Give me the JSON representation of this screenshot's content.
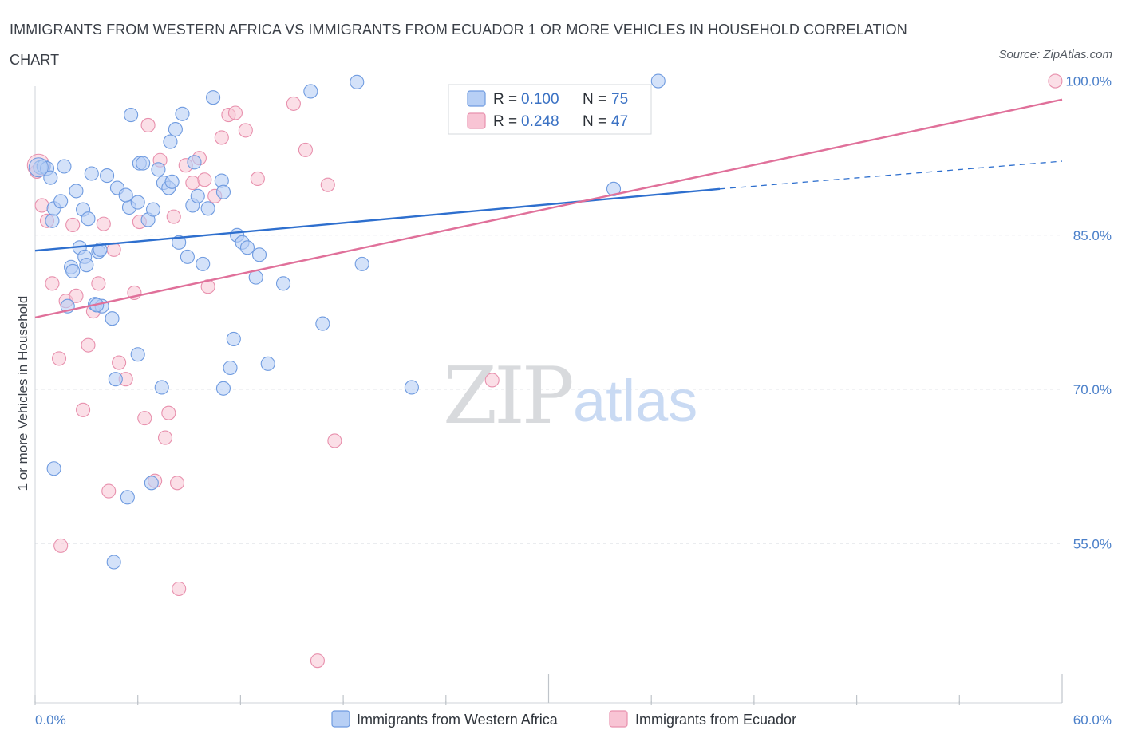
{
  "header": {
    "title": "IMMIGRANTS FROM WESTERN AFRICA VS IMMIGRANTS FROM ECUADOR 1 OR MORE VEHICLES IN HOUSEHOLD CORRELATION CHART",
    "source": "Source: ZipAtlas.com"
  },
  "watermark": {
    "zip": "ZIP",
    "atlas": "atlas"
  },
  "legend": {
    "r_label": "R =",
    "n_label": "N =",
    "items": [
      {
        "r": "0.100",
        "n": "75"
      },
      {
        "r": "0.248",
        "n": "47"
      }
    ]
  },
  "colors": {
    "blue_fill": "#b7cff5",
    "blue_stroke": "#6f9be0",
    "blue_line": "#2e6fce",
    "pink_fill": "#f8c4d4",
    "pink_stroke": "#e890ad",
    "pink_line": "#e0709a",
    "grid": "#e3e6ea",
    "tick_text": "#4a7fc9"
  },
  "chart_data": {
    "type": "scatter",
    "title": "IMMIGRANTS FROM WESTERN AFRICA VS IMMIGRANTS FROM ECUADOR 1 OR MORE VEHICLES IN HOUSEHOLD CORRELATION CHART",
    "xlabel": "",
    "ylabel": "1 or more Vehicles in Household",
    "xlim": [
      0,
      60
    ],
    "ylim": [
      39.5,
      99.5
    ],
    "x_ticks": [
      0,
      60
    ],
    "x_tick_labels": [
      "0.0%",
      "60.0%"
    ],
    "y_ticks": [
      55,
      70,
      85,
      100
    ],
    "y_tick_labels": [
      "55.0%",
      "70.0%",
      "85.0%",
      "100.0%"
    ],
    "grid": true,
    "legend_position": "top-center",
    "series": [
      {
        "name": "Immigrants from Western Africa",
        "r": 0.1,
        "n": 75,
        "trend": {
          "x": [
            0,
            40
          ],
          "y": [
            83.5,
            89.5
          ],
          "dashed_to": [
            60,
            92.2
          ]
        },
        "points": [
          [
            0.3,
            91.6
          ],
          [
            0.5,
            91.7
          ],
          [
            0.7,
            91.5
          ],
          [
            0.9,
            90.6
          ],
          [
            1.0,
            86.4
          ],
          [
            1.1,
            87.6
          ],
          [
            1.5,
            88.3
          ],
          [
            1.7,
            91.7
          ],
          [
            1.9,
            78.1
          ],
          [
            2.1,
            81.9
          ],
          [
            2.4,
            89.3
          ],
          [
            2.6,
            83.8
          ],
          [
            2.8,
            87.5
          ],
          [
            2.9,
            82.9
          ],
          [
            3.0,
            82.1
          ],
          [
            3.1,
            86.6
          ],
          [
            3.3,
            91.0
          ],
          [
            3.5,
            78.3
          ],
          [
            3.7,
            83.4
          ],
          [
            3.9,
            78.1
          ],
          [
            4.2,
            90.8
          ],
          [
            4.5,
            76.9
          ],
          [
            4.8,
            89.6
          ],
          [
            5.5,
            87.7
          ],
          [
            5.6,
            96.7
          ],
          [
            6.0,
            88.2
          ],
          [
            6.1,
            92.0
          ],
          [
            6.3,
            92.0
          ],
          [
            6.6,
            86.5
          ],
          [
            6.9,
            87.5
          ],
          [
            7.2,
            91.4
          ],
          [
            7.5,
            90.1
          ],
          [
            7.8,
            89.6
          ],
          [
            7.9,
            94.1
          ],
          [
            8.2,
            95.3
          ],
          [
            8.4,
            84.3
          ],
          [
            8.6,
            96.8
          ],
          [
            8.9,
            82.9
          ],
          [
            9.2,
            87.9
          ],
          [
            9.3,
            92.1
          ],
          [
            9.5,
            88.8
          ],
          [
            9.8,
            82.2
          ],
          [
            10.1,
            87.6
          ],
          [
            10.4,
            98.4
          ],
          [
            10.9,
            90.3
          ],
          [
            11.0,
            89.2
          ],
          [
            11.4,
            72.1
          ],
          [
            11.6,
            74.9
          ],
          [
            11.8,
            85.0
          ],
          [
            12.1,
            84.3
          ],
          [
            12.4,
            83.8
          ],
          [
            12.9,
            80.9
          ],
          [
            13.1,
            83.1
          ],
          [
            13.6,
            72.5
          ],
          [
            14.5,
            80.3
          ],
          [
            16.1,
            99.0
          ],
          [
            16.8,
            76.4
          ],
          [
            18.8,
            99.9
          ],
          [
            19.1,
            82.2
          ],
          [
            22.0,
            70.2
          ],
          [
            33.8,
            89.5
          ],
          [
            36.4,
            100.0
          ],
          [
            4.6,
            53.2
          ],
          [
            5.4,
            59.5
          ],
          [
            6.8,
            60.9
          ],
          [
            1.1,
            62.3
          ],
          [
            4.7,
            71.0
          ],
          [
            6.0,
            73.4
          ],
          [
            7.4,
            70.2
          ],
          [
            11.0,
            70.1
          ],
          [
            3.6,
            78.2
          ],
          [
            2.2,
            81.5
          ],
          [
            3.8,
            83.6
          ],
          [
            5.3,
            88.9
          ],
          [
            8.0,
            90.2
          ]
        ]
      },
      {
        "name": "Immigrants from Ecuador",
        "r": 0.248,
        "n": 47,
        "trend": {
          "x": [
            0,
            60
          ],
          "y": [
            77.0,
            98.2
          ]
        },
        "points": [
          [
            0.1,
            91.2
          ],
          [
            0.4,
            87.9
          ],
          [
            0.7,
            86.4
          ],
          [
            1.0,
            80.3
          ],
          [
            1.4,
            73.0
          ],
          [
            1.5,
            54.8
          ],
          [
            1.8,
            78.6
          ],
          [
            2.2,
            86.0
          ],
          [
            2.4,
            79.1
          ],
          [
            2.8,
            68.0
          ],
          [
            3.1,
            74.3
          ],
          [
            3.4,
            77.6
          ],
          [
            3.7,
            80.3
          ],
          [
            4.0,
            86.1
          ],
          [
            4.3,
            60.1
          ],
          [
            4.6,
            83.6
          ],
          [
            4.9,
            72.6
          ],
          [
            5.3,
            71.0
          ],
          [
            5.8,
            79.4
          ],
          [
            6.1,
            86.3
          ],
          [
            6.4,
            67.2
          ],
          [
            6.6,
            95.7
          ],
          [
            7.0,
            61.1
          ],
          [
            7.3,
            92.3
          ],
          [
            7.6,
            65.3
          ],
          [
            7.8,
            67.7
          ],
          [
            8.1,
            86.8
          ],
          [
            8.3,
            60.9
          ],
          [
            8.4,
            50.6
          ],
          [
            8.8,
            91.8
          ],
          [
            9.2,
            90.1
          ],
          [
            9.6,
            92.5
          ],
          [
            9.9,
            90.4
          ],
          [
            10.1,
            80.0
          ],
          [
            10.5,
            88.8
          ],
          [
            10.9,
            94.5
          ],
          [
            11.3,
            96.7
          ],
          [
            11.7,
            96.9
          ],
          [
            12.3,
            95.2
          ],
          [
            13.0,
            90.5
          ],
          [
            15.1,
            97.8
          ],
          [
            15.8,
            93.3
          ],
          [
            16.5,
            43.6
          ],
          [
            17.1,
            89.9
          ],
          [
            17.5,
            65.0
          ],
          [
            26.7,
            70.9
          ],
          [
            59.6,
            100.0
          ]
        ]
      }
    ]
  },
  "bottom_legend": [
    {
      "label": "Immigrants from Western Africa"
    },
    {
      "label": "Immigrants from Ecuador"
    }
  ]
}
